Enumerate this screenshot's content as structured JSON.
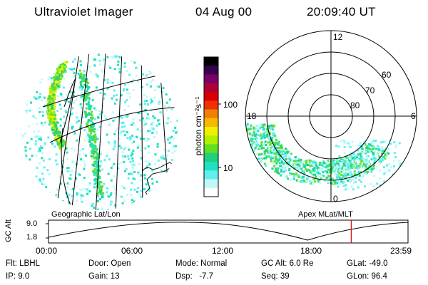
{
  "header": {
    "title": "Ultraviolet Imager",
    "date": "04 Aug 00",
    "time": "20:09:40 UT"
  },
  "colorbar": {
    "unit_label": "photon cm⁻²s⁻¹",
    "ticks": [
      "100",
      "10"
    ],
    "colors": [
      "#000000",
      "#3a0050",
      "#7a006a",
      "#b0003a",
      "#d80000",
      "#f03000",
      "#f08000",
      "#f8b800",
      "#f0f000",
      "#b0f000",
      "#60e020",
      "#20d080",
      "#20e0c0",
      "#60f0f0",
      "#c0f8f8",
      "#ffffff"
    ]
  },
  "polar": {
    "mlt_labels": [
      "12",
      "18",
      "6",
      "0"
    ],
    "lat_labels": [
      "60",
      "70",
      "80"
    ]
  },
  "timeline": {
    "left_label": "Geographic Lat/Lon",
    "right_label": "Apex MLat/MLT",
    "y_axis_title": "GC Alt",
    "y_ticks": [
      "9.0",
      "1.8"
    ],
    "x_ticks": [
      "00:00",
      "06:00",
      "12:00",
      "18:00",
      "23:59"
    ],
    "current_time_fraction": 0.842,
    "marker_color": "#e00000"
  },
  "info": {
    "filter": "Flt: LBHL",
    "ip": "IP: 9.0",
    "door": "Door: Open",
    "gain": "Gain: 13",
    "mode": "Mode: Normal",
    "dsp": "Dsp:   -7.7",
    "gc_alt": "GC Alt: 6.0 Re",
    "seq": "Seq: 39",
    "glat": "GLat: -49.0",
    "glon": "GLon: 96.4"
  }
}
